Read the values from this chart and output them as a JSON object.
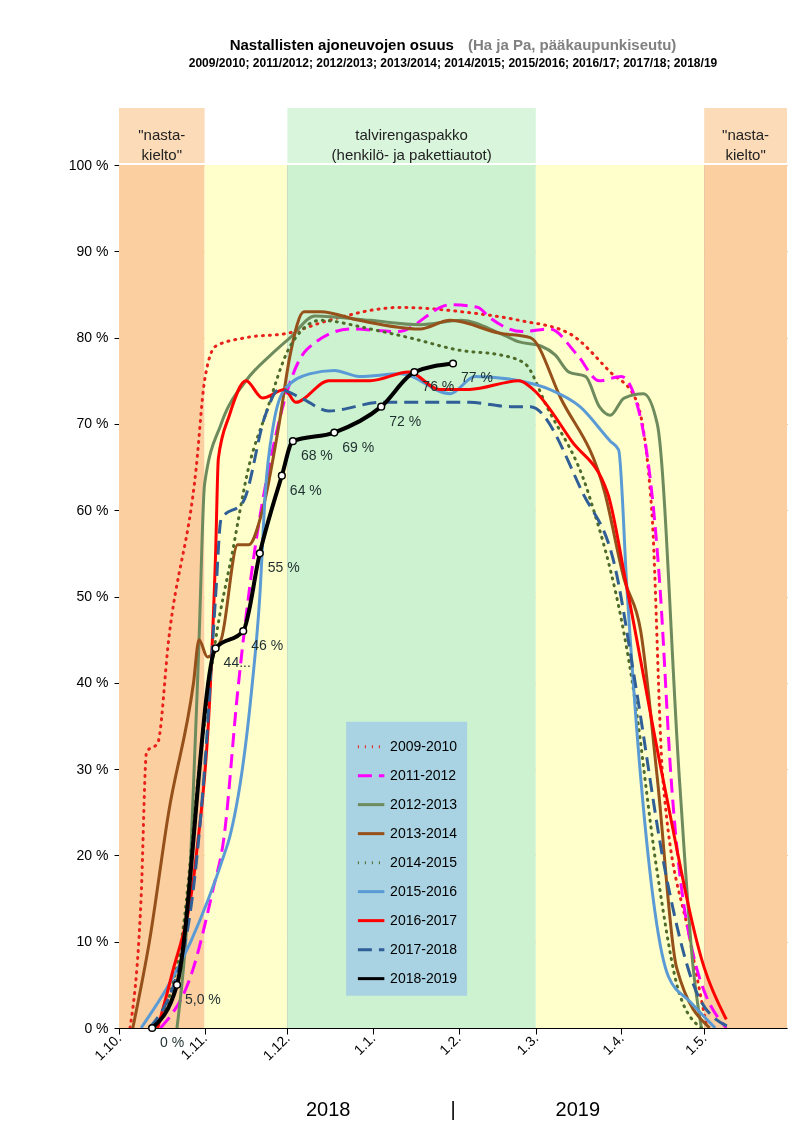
{
  "chart_data": {
    "type": "line",
    "title": "Nastallisten ajoneuvojen osuus",
    "subtitle": "(Ha ja Pa, pääkaupunkiseutu)",
    "annotations": [
      "2009/2010; 2011/2012; 2012/2013; 2013/2014; 2014/2015; 2015/2016; 2016/17; 2017/18; 2018/19",
      "2018",
      "|",
      "2019"
    ],
    "xlim": [
      "2018-10-01",
      "2019-05-31"
    ],
    "xticks": [
      {
        "value": "2018-10-01",
        "label": "1.10."
      },
      {
        "value": "2018-11-01",
        "label": "1.11."
      },
      {
        "value": "2018-12-01",
        "label": "1.12."
      },
      {
        "value": "2019-01-01",
        "label": "1.1."
      },
      {
        "value": "2019-02-01",
        "label": "1.2."
      },
      {
        "value": "2019-03-01",
        "label": "1.3."
      },
      {
        "value": "2019-04-01",
        "label": "1.4."
      },
      {
        "value": "2019-05-01",
        "label": "1.5."
      }
    ],
    "ylim": [
      0,
      100
    ],
    "yticks": [
      {
        "value": 0,
        "label": "0 %"
      },
      {
        "value": 10,
        "label": "10 %"
      },
      {
        "value": 20,
        "label": "20 %"
      },
      {
        "value": 30,
        "label": "30 %"
      },
      {
        "value": 40,
        "label": "40 %"
      },
      {
        "value": 50,
        "label": "50 %"
      },
      {
        "value": 60,
        "label": "60 %"
      },
      {
        "value": 70,
        "label": "70 %"
      },
      {
        "value": 80,
        "label": "80 %"
      },
      {
        "value": 90,
        "label": "90 %"
      },
      {
        "value": 100,
        "label": "100 %"
      }
    ],
    "grid": true,
    "legend": "bottom",
    "bands": [
      {
        "axis": "x",
        "from": "2018-10-01",
        "to": "2018-11-01",
        "label": "\"nasta-\nkielto\"",
        "color": "#fbcfa0"
      },
      {
        "axis": "x",
        "from": "2018-11-01",
        "to": "2018-12-01",
        "color": "#ffffcc"
      },
      {
        "axis": "x",
        "from": "2018-12-01",
        "to": "2019-03-01",
        "label": "talvirengaspakko\n(henkilö- ja pakettiautot)",
        "color": "#ccf2d0"
      },
      {
        "axis": "x",
        "from": "2019-03-01",
        "to": "2019-05-01",
        "color": "#ffffcc"
      },
      {
        "axis": "x",
        "from": "2019-05-01",
        "to": "2019-05-31",
        "label": "\"nasta-\nkielto\"",
        "color": "#fbcfa0"
      }
    ],
    "series": [
      {
        "name": "2009-2010",
        "color": "#e8211b",
        "line_style": "dotted",
        "x": [
          "2018-10-05",
          "2018-10-09",
          "2018-10-11",
          "2018-10-15",
          "2018-10-19",
          "2018-10-29",
          "2018-11-01",
          "2018-11-05",
          "2018-11-16",
          "2018-12-01",
          "2018-12-16",
          "2019-01-11",
          "2019-02-02",
          "2019-02-23",
          "2019-03-13",
          "2019-03-28",
          "2019-04-06",
          "2019-04-12",
          "2019-04-16",
          "2019-04-26",
          "2019-05-02"
        ],
        "values": [
          0,
          15,
          32,
          33,
          45,
          65,
          75,
          79,
          80,
          80.5,
          82,
          83.5,
          83,
          82,
          80.5,
          76,
          73,
          60,
          29,
          10,
          0
        ]
      },
      {
        "name": "2011-2012",
        "color": "#ff00ff",
        "line_style": "dashed",
        "x": [
          "2018-10-16",
          "2018-10-28",
          "2018-11-04",
          "2018-11-08",
          "2018-11-13",
          "2018-11-19",
          "2018-11-25",
          "2018-12-08",
          "2018-12-24",
          "2019-01-10",
          "2019-01-29",
          "2019-02-08",
          "2019-02-12",
          "2019-02-24",
          "2019-03-06",
          "2019-03-16",
          "2019-03-24",
          "2019-04-01",
          "2019-04-06",
          "2019-04-15",
          "2019-04-19",
          "2019-04-26",
          "2019-05-09"
        ],
        "values": [
          0,
          7,
          16,
          22,
          39,
          55,
          66,
          78.6,
          81,
          80.7,
          83.8,
          83.5,
          82.4,
          80.7,
          81,
          78,
          75,
          75.5,
          73,
          51,
          29,
          10,
          0
        ]
      },
      {
        "name": "2012-2013",
        "color": "#6e8b5e",
        "line_style": "solid",
        "x": [
          "2018-10-22",
          "2018-10-27",
          "2018-10-30",
          "2018-11-01",
          "2018-11-07",
          "2018-11-16",
          "2018-11-25",
          "2018-12-02",
          "2018-12-11",
          "2018-12-31",
          "2019-01-18",
          "2019-02-02",
          "2019-02-16",
          "2019-02-23",
          "2019-03-03",
          "2019-03-08",
          "2019-03-13",
          "2019-03-19",
          "2019-03-24",
          "2019-03-28",
          "2019-04-02",
          "2019-04-09",
          "2019-04-14",
          "2019-04-22",
          "2019-04-27",
          "2019-04-30"
        ],
        "values": [
          0,
          20,
          45,
          63,
          70,
          75,
          78,
          80,
          82.5,
          82,
          81.5,
          82,
          80.5,
          79.5,
          79,
          78,
          76,
          75.5,
          72,
          71,
          73,
          73.5,
          70,
          29,
          7,
          0
        ]
      },
      {
        "name": "2013-2014",
        "color": "#96501a",
        "line_style": "solid",
        "x": [
          "2018-10-06",
          "2018-10-12",
          "2018-10-19",
          "2018-10-28",
          "2018-10-30",
          "2018-11-02",
          "2018-11-07",
          "2018-11-13",
          "2018-11-17",
          "2018-11-22",
          "2018-11-28",
          "2018-12-02",
          "2018-12-07",
          "2018-12-13",
          "2018-12-27",
          "2019-01-18",
          "2019-01-29",
          "2019-02-16",
          "2019-02-27",
          "2019-03-10",
          "2019-03-26",
          "2019-04-02",
          "2019-04-08",
          "2019-04-14",
          "2019-04-21",
          "2019-05-03"
        ],
        "values": [
          0,
          10,
          25,
          40,
          45,
          43,
          45,
          56,
          56,
          60,
          70,
          78,
          83,
          83,
          82,
          81,
          82,
          80.5,
          80,
          73,
          62,
          52,
          46,
          29,
          7,
          0
        ]
      },
      {
        "name": "2014-2015",
        "color": "#4e6b2a",
        "line_style": "dotted",
        "x": [
          "2018-10-14",
          "2018-10-24",
          "2018-10-30",
          "2018-11-05",
          "2018-11-11",
          "2018-11-17",
          "2018-11-23",
          "2018-12-02",
          "2018-12-13",
          "2018-12-31",
          "2019-01-14",
          "2019-02-02",
          "2019-02-16",
          "2019-02-25",
          "2019-03-05",
          "2019-03-20",
          "2019-04-05",
          "2019-04-14",
          "2019-04-22",
          "2019-04-30"
        ],
        "values": [
          0,
          11,
          30,
          45,
          55,
          65,
          71,
          79,
          82,
          81,
          80,
          78.5,
          78,
          77,
          72,
          62,
          40,
          18,
          4,
          0
        ]
      },
      {
        "name": "2015-2016",
        "color": "#5b9bd5",
        "line_style": "solid",
        "x": [
          "2018-10-09",
          "2018-10-27",
          "2018-11-08",
          "2018-11-10",
          "2018-11-18",
          "2018-11-21",
          "2018-11-23",
          "2018-11-26",
          "2018-11-30",
          "2018-12-09",
          "2018-12-18",
          "2018-12-27",
          "2019-01-11",
          "2019-01-29",
          "2019-02-07",
          "2019-02-23",
          "2019-03-06",
          "2019-03-17",
          "2019-03-28",
          "2019-03-31",
          "2019-04-03",
          "2019-04-08",
          "2019-04-18",
          "2019-04-26",
          "2019-05-05"
        ],
        "values": [
          0,
          10,
          20,
          22,
          39,
          50,
          62,
          70,
          74,
          75.8,
          76.2,
          75.5,
          75.8,
          73.5,
          75.5,
          75,
          74,
          72,
          68,
          67,
          51,
          29,
          6,
          3,
          0
        ]
      },
      {
        "name": "2016-2017",
        "color": "#ff0000",
        "line_style": "solid",
        "x": [
          "2018-10-15",
          "2018-10-20",
          "2018-10-29",
          "2018-11-03",
          "2018-11-05",
          "2018-11-06",
          "2018-11-10",
          "2018-11-16",
          "2018-11-22",
          "2018-11-30",
          "2018-12-04",
          "2018-12-16",
          "2018-12-31",
          "2019-01-14",
          "2019-01-25",
          "2019-02-05",
          "2019-02-23",
          "2019-02-28",
          "2019-03-14",
          "2019-03-27",
          "2019-04-03",
          "2019-04-16",
          "2019-05-01",
          "2019-05-09"
        ],
        "values": [
          0,
          6,
          20,
          39,
          55,
          66,
          71,
          75,
          73,
          74,
          72.5,
          75,
          75,
          76,
          74,
          74,
          75,
          74,
          68,
          62,
          51,
          29,
          7,
          1
        ]
      },
      {
        "name": "2017-2018",
        "color": "#2f5f96",
        "line_style": "dashed",
        "x": [
          "2018-10-12",
          "2018-10-25",
          "2018-11-01",
          "2018-11-05",
          "2018-11-07",
          "2018-11-15",
          "2018-11-23",
          "2018-11-28",
          "2018-12-06",
          "2018-12-16",
          "2019-01-04",
          "2019-01-18",
          "2019-02-05",
          "2019-02-20",
          "2019-02-27",
          "2019-03-18",
          "2019-03-30",
          "2019-04-06",
          "2019-04-17",
          "2019-04-30",
          "2019-05-11"
        ],
        "values": [
          0,
          10,
          30,
          50,
          59,
          61,
          71,
          74,
          73,
          71.5,
          72.5,
          72.5,
          72.5,
          72,
          72,
          62,
          53,
          40,
          18,
          3,
          0
        ]
      },
      {
        "name": "2018-2019",
        "color": "#000000",
        "line_style": "solid",
        "marker": "circle",
        "x": [
          "2018-10-13",
          "2018-10-22",
          "2018-11-05",
          "2018-11-15",
          "2018-11-21",
          "2018-11-29",
          "2018-12-03",
          "2018-12-18",
          "2019-01-04",
          "2019-01-16",
          "2019-01-30"
        ],
        "values": [
          0,
          5,
          44,
          46,
          55,
          64,
          68,
          69,
          72,
          76,
          77
        ],
        "value_labels": [
          "0 %",
          "5,0 %",
          "44...",
          "46 %",
          "55 %",
          "64 %",
          "68 %",
          "69 %",
          "72 %",
          "76 %",
          "77 %"
        ]
      }
    ]
  }
}
